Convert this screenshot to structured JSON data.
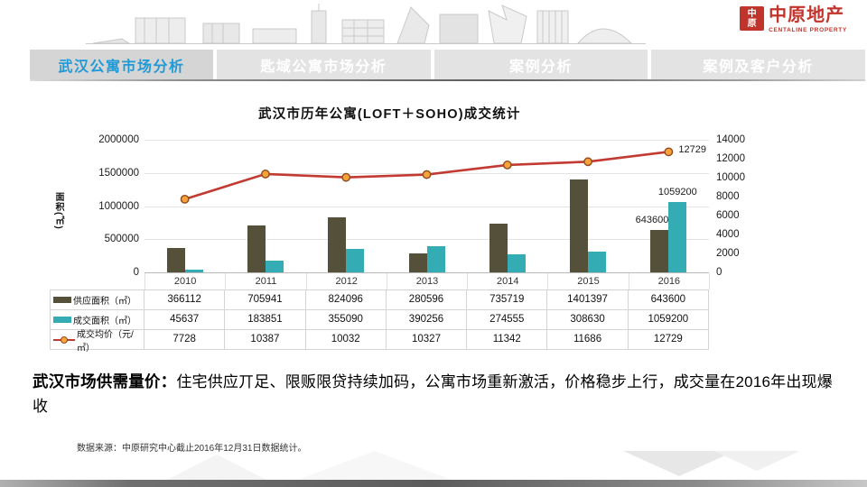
{
  "header": {
    "logo": {
      "mark_top": "中",
      "mark_bottom": "原",
      "name_cn": "中原地产",
      "name_en": "CENTALINE PROPERTY",
      "brand_color": "#C1342B"
    },
    "tabs": [
      {
        "label": "武汉公寓市场分析",
        "active": true
      },
      {
        "label": "匙域公寓市场分析",
        "active": false
      },
      {
        "label": "案例分析",
        "active": false
      },
      {
        "label": "案例及客户分析",
        "active": false
      }
    ],
    "active_tab_text_color": "#1F9AD7"
  },
  "chart_data": {
    "type": "combo: bar + line",
    "title": "武汉市历年公寓(LOFT＋SOHO)成交统计",
    "categories": [
      "2010",
      "2011",
      "2012",
      "2013",
      "2014",
      "2015",
      "2016"
    ],
    "series": [
      {
        "name": "供应面积（㎡）",
        "type": "bar",
        "axis": "left",
        "color": "#54503A",
        "values": [
          366112,
          705941,
          824096,
          280596,
          735719,
          1401397,
          643600
        ]
      },
      {
        "name": "成交面积（㎡）",
        "type": "bar",
        "axis": "left",
        "color": "#33ADB3",
        "values": [
          45637,
          183851,
          355090,
          390256,
          274555,
          308630,
          1059200
        ]
      },
      {
        "name": "成交均价（元/㎡）",
        "type": "line",
        "axis": "right",
        "color": "#C23B32",
        "marker_color": "#F8A23B",
        "marker_edge_color": "#8F4A1D",
        "values": [
          7728,
          10387,
          10032,
          10327,
          11342,
          11686,
          12729
        ]
      }
    ],
    "left_axis": {
      "title": "面积(㎡)",
      "min": 0,
      "max": 2000000,
      "step": 500000,
      "ticks": [
        "2000000",
        "1500000",
        "1000000",
        "500000",
        "0"
      ]
    },
    "right_axis": {
      "min": 0,
      "max": 14000,
      "step": 2000,
      "ticks": [
        "14000",
        "12000",
        "10000",
        "8000",
        "6000",
        "4000",
        "2000",
        "0"
      ]
    },
    "callouts": {
      "price_2016": "12729",
      "deal_2016": "1059200",
      "supply_2016": "643600"
    },
    "legend_position": "table-left",
    "grid": "horizontal"
  },
  "summary": {
    "lead": "武汉市场供需量价：",
    "body": "住宅供应丌足、限贩限贷持续加码，公寓市场重新激活，价格稳步上行，成交量在2016年出现爆收"
  },
  "source_note": "数据来源：中原研究中心截止2016年12月31日数据统计。"
}
